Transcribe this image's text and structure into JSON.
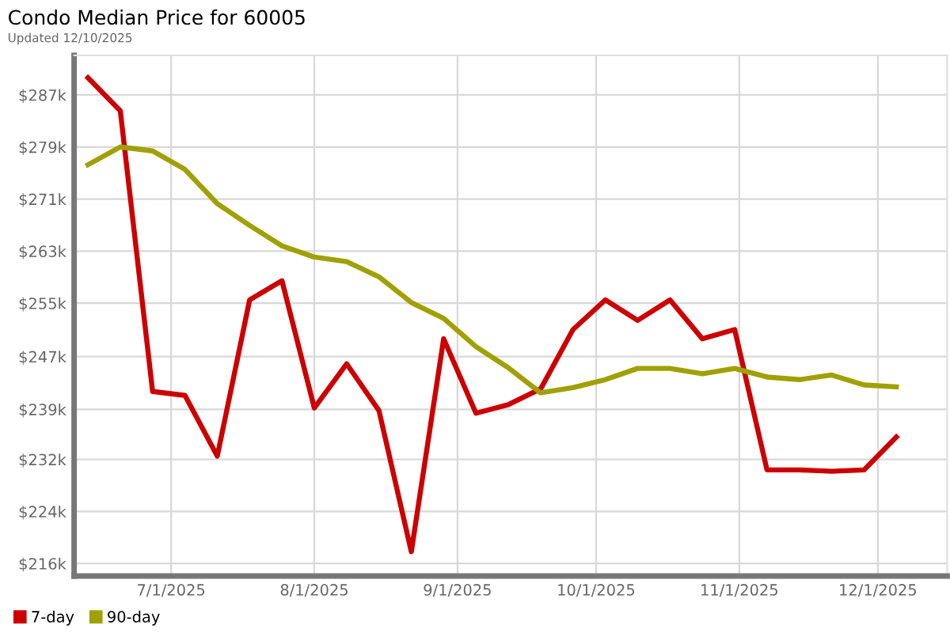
{
  "chart_data": {
    "type": "line",
    "title": "Condo Median Price for 60005",
    "subtitle": "Updated 12/10/2025",
    "x": [
      "2025-06-13",
      "2025-06-20",
      "2025-06-27",
      "2025-07-04",
      "2025-07-11",
      "2025-07-18",
      "2025-07-25",
      "2025-08-01",
      "2025-08-08",
      "2025-08-15",
      "2025-08-22",
      "2025-08-29",
      "2025-09-05",
      "2025-09-12",
      "2025-09-19",
      "2025-09-26",
      "2025-10-03",
      "2025-10-10",
      "2025-10-17",
      "2025-10-24",
      "2025-10-31",
      "2025-11-07",
      "2025-11-14",
      "2025-11-21",
      "2025-11-28",
      "2025-12-05"
    ],
    "series": [
      {
        "name": "7-day",
        "color": "#cc0000",
        "values": [
          289.7,
          284.7,
          242.1,
          241.5,
          232.3,
          256.0,
          258.9,
          239.6,
          246.3,
          239.2,
          217.8,
          250.1,
          238.8,
          240.1,
          242.5,
          251.5,
          256.0,
          252.9,
          256.0,
          250.1,
          251.5,
          230.2,
          230.2,
          230.0,
          230.2,
          235.2
        ]
      },
      {
        "name": "90-day",
        "color": "#a0a000",
        "values": [
          276.5,
          279.2,
          278.6,
          275.8,
          270.6,
          267.3,
          264.2,
          262.5,
          261.8,
          259.5,
          255.6,
          253.2,
          248.9,
          245.7,
          241.9,
          242.7,
          243.9,
          245.6,
          245.6,
          244.8,
          245.6,
          244.3,
          243.9,
          244.6,
          243.1,
          242.8
        ]
      }
    ],
    "xlim": [
      "2025-06-10",
      "2025-12-16"
    ],
    "xticks": [
      {
        "value": "2025-07-01",
        "label": "7/1/2025"
      },
      {
        "value": "2025-08-01",
        "label": "8/1/2025"
      },
      {
        "value": "2025-09-01",
        "label": "9/1/2025"
      },
      {
        "value": "2025-10-01",
        "label": "10/1/2025"
      },
      {
        "value": "2025-11-01",
        "label": "11/1/2025"
      },
      {
        "value": "2025-12-01",
        "label": "12/1/2025"
      }
    ],
    "ylim": [
      214.1,
      293.1
    ],
    "yticks": [
      {
        "value": 216,
        "label": "$216k"
      },
      {
        "value": 223.9,
        "label": "$224k"
      },
      {
        "value": 231.8,
        "label": "$232k"
      },
      {
        "value": 239.4,
        "label": "$239k"
      },
      {
        "value": 247.4,
        "label": "$247k"
      },
      {
        "value": 255.5,
        "label": "$255k"
      },
      {
        "value": 263.4,
        "label": "$263k"
      },
      {
        "value": 271.3,
        "label": "$271k"
      },
      {
        "value": 279.2,
        "label": "$279k"
      },
      {
        "value": 287.1,
        "label": "$287k"
      }
    ],
    "grid": true,
    "legend": "bottom left",
    "marker": "none",
    "line_style": "solid"
  }
}
